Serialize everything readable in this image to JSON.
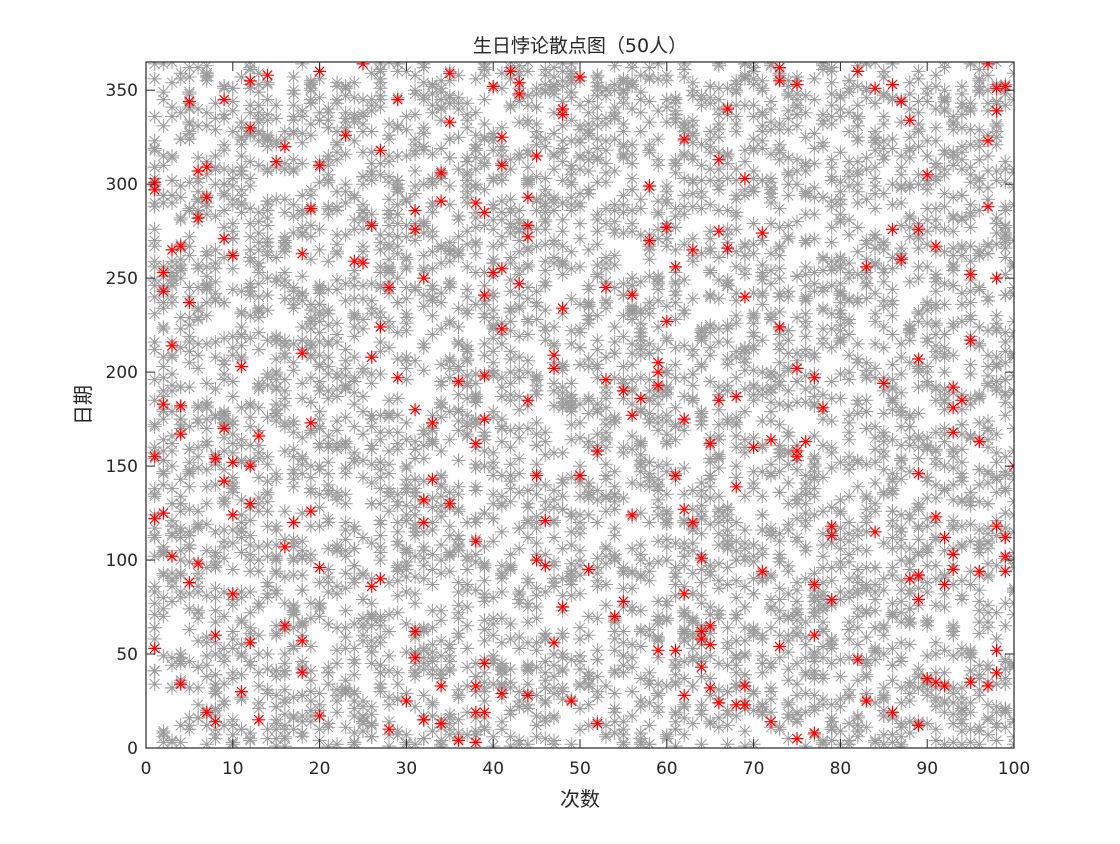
{
  "chart_data": {
    "type": "scatter",
    "title": "生日悖论散点图（50人）",
    "xlabel": "次数",
    "ylabel": "日期",
    "xlim": [
      0,
      100
    ],
    "ylim": [
      0,
      365
    ],
    "xticks": [
      0,
      10,
      20,
      30,
      40,
      50,
      60,
      70,
      80,
      90,
      100
    ],
    "yticks": [
      0,
      50,
      100,
      150,
      200,
      250,
      300,
      350
    ],
    "grid": false,
    "legend": "none",
    "marker": "asterisk",
    "colors": {
      "background_points": "#9b9b9b",
      "highlight_points": "#ff0000",
      "axes": "#262626"
    },
    "people_per_trial": 50,
    "trials": 100,
    "series": [
      {
        "role": "background",
        "color": "#9b9b9b",
        "description_source": "every simulated birthday for each trial (x = trial number, y = day of year)"
      },
      {
        "role": "highlight",
        "color": "#ff0000",
        "points": [
          [
            1,
            155
          ],
          [
            1,
            122
          ],
          [
            1,
            53
          ],
          [
            1,
            297
          ],
          [
            1,
            301
          ],
          [
            2,
            183
          ],
          [
            2,
            243
          ],
          [
            2,
            253
          ],
          [
            2,
            125
          ],
          [
            3,
            214
          ],
          [
            3,
            265
          ],
          [
            3,
            102
          ],
          [
            4,
            267
          ],
          [
            4,
            182
          ],
          [
            4,
            167
          ],
          [
            4,
            34
          ],
          [
            5,
            344
          ],
          [
            5,
            237
          ],
          [
            5,
            88
          ],
          [
            6,
            282
          ],
          [
            6,
            307
          ],
          [
            6,
            98
          ],
          [
            7,
            293
          ],
          [
            7,
            19
          ],
          [
            7,
            309
          ],
          [
            8,
            60
          ],
          [
            8,
            154
          ],
          [
            8,
            14
          ],
          [
            9,
            271
          ],
          [
            9,
            170
          ],
          [
            9,
            142
          ],
          [
            9,
            345
          ],
          [
            10,
            152
          ],
          [
            10,
            262
          ],
          [
            10,
            124
          ],
          [
            10,
            82
          ],
          [
            11,
            203
          ],
          [
            11,
            30
          ],
          [
            12,
            56
          ],
          [
            12,
            150
          ],
          [
            12,
            355
          ],
          [
            12,
            330
          ],
          [
            12,
            130
          ],
          [
            13,
            166
          ],
          [
            13,
            15
          ],
          [
            14,
            358
          ],
          [
            15,
            312
          ],
          [
            16,
            107
          ],
          [
            16,
            65
          ],
          [
            16,
            320
          ],
          [
            17,
            120
          ],
          [
            18,
            263
          ],
          [
            18,
            210
          ],
          [
            18,
            57
          ],
          [
            18,
            40
          ],
          [
            19,
            287
          ],
          [
            19,
            126
          ],
          [
            19,
            173
          ],
          [
            20,
            360
          ],
          [
            20,
            310
          ],
          [
            20,
            96
          ],
          [
            20,
            17
          ],
          [
            23,
            326
          ],
          [
            24,
            259
          ],
          [
            25,
            258
          ],
          [
            25,
            364
          ],
          [
            26,
            208
          ],
          [
            26,
            86
          ],
          [
            26,
            278
          ],
          [
            27,
            90
          ],
          [
            27,
            318
          ],
          [
            27,
            224
          ],
          [
            28,
            245
          ],
          [
            28,
            10
          ],
          [
            29,
            345
          ],
          [
            29,
            197
          ],
          [
            30,
            25
          ],
          [
            31,
            286
          ],
          [
            31,
            180
          ],
          [
            31,
            62
          ],
          [
            31,
            276
          ],
          [
            31,
            48
          ],
          [
            32,
            250
          ],
          [
            32,
            132
          ],
          [
            32,
            120
          ],
          [
            32,
            15
          ],
          [
            33,
            173
          ],
          [
            33,
            143
          ],
          [
            34,
            306
          ],
          [
            34,
            291
          ],
          [
            34,
            33
          ],
          [
            34,
            13
          ],
          [
            35,
            359
          ],
          [
            35,
            333
          ],
          [
            35,
            130
          ],
          [
            36,
            195
          ],
          [
            36,
            4
          ],
          [
            38,
            290
          ],
          [
            38,
            162
          ],
          [
            38,
            110
          ],
          [
            38,
            33
          ],
          [
            38,
            19
          ],
          [
            38,
            3
          ],
          [
            39,
            285
          ],
          [
            39,
            241
          ],
          [
            39,
            198
          ],
          [
            39,
            175
          ],
          [
            39,
            45
          ],
          [
            39,
            19
          ],
          [
            40,
            352
          ],
          [
            40,
            253
          ],
          [
            41,
            325
          ],
          [
            41,
            310
          ],
          [
            41,
            255
          ],
          [
            41,
            223
          ],
          [
            41,
            29
          ],
          [
            42,
            360
          ],
          [
            43,
            247
          ],
          [
            43,
            354
          ],
          [
            43,
            348
          ],
          [
            44,
            293
          ],
          [
            44,
            278
          ],
          [
            44,
            272
          ],
          [
            44,
            185
          ],
          [
            44,
            28
          ],
          [
            45,
            315
          ],
          [
            45,
            145
          ],
          [
            45,
            100
          ],
          [
            46,
            121
          ],
          [
            46,
            97
          ],
          [
            47,
            209
          ],
          [
            47,
            202
          ],
          [
            47,
            56
          ],
          [
            48,
            340
          ],
          [
            48,
            337
          ],
          [
            48,
            234
          ],
          [
            48,
            75
          ],
          [
            49,
            25
          ],
          [
            50,
            357
          ],
          [
            50,
            145
          ],
          [
            51,
            95
          ],
          [
            52,
            158
          ],
          [
            52,
            13
          ],
          [
            53,
            245
          ],
          [
            53,
            196
          ],
          [
            54,
            70
          ],
          [
            55,
            190
          ],
          [
            55,
            78
          ],
          [
            56,
            241
          ],
          [
            56,
            177
          ],
          [
            56,
            124
          ],
          [
            57,
            186
          ],
          [
            58,
            299
          ],
          [
            58,
            270
          ],
          [
            59,
            205
          ],
          [
            59,
            193
          ],
          [
            59,
            200
          ],
          [
            59,
            52
          ],
          [
            60,
            277
          ],
          [
            60,
            227
          ],
          [
            61,
            256
          ],
          [
            61,
            145
          ],
          [
            61,
            52
          ],
          [
            62,
            324
          ],
          [
            62,
            175
          ],
          [
            62,
            127
          ],
          [
            62,
            82
          ],
          [
            62,
            28
          ],
          [
            63,
            265
          ],
          [
            63,
            120
          ],
          [
            64,
            101
          ],
          [
            64,
            62
          ],
          [
            64,
            58
          ],
          [
            64,
            43
          ],
          [
            65,
            162
          ],
          [
            65,
            65
          ],
          [
            65,
            55
          ],
          [
            65,
            32
          ],
          [
            66,
            313
          ],
          [
            66,
            275
          ],
          [
            66,
            185
          ],
          [
            66,
            24
          ],
          [
            67,
            340
          ],
          [
            67,
            266
          ],
          [
            68,
            187
          ],
          [
            68,
            139
          ],
          [
            68,
            23
          ],
          [
            69,
            303
          ],
          [
            69,
            240
          ],
          [
            69,
            33
          ],
          [
            69,
            23
          ],
          [
            70,
            160
          ],
          [
            71,
            274
          ],
          [
            71,
            94
          ],
          [
            72,
            164
          ],
          [
            72,
            14
          ],
          [
            73,
            362
          ],
          [
            73,
            355
          ],
          [
            73,
            224
          ],
          [
            73,
            54
          ],
          [
            75,
            353
          ],
          [
            75,
            202
          ],
          [
            75,
            158
          ],
          [
            75,
            155
          ],
          [
            75,
            5
          ],
          [
            76,
            163
          ],
          [
            77,
            197
          ],
          [
            77,
            87
          ],
          [
            77,
            60
          ],
          [
            77,
            8
          ],
          [
            78,
            181
          ],
          [
            79,
            118
          ],
          [
            79,
            113
          ],
          [
            79,
            79
          ],
          [
            82,
            360
          ],
          [
            82,
            47
          ],
          [
            83,
            256
          ],
          [
            83,
            25
          ],
          [
            84,
            351
          ],
          [
            84,
            115
          ],
          [
            85,
            194
          ],
          [
            86,
            353
          ],
          [
            86,
            276
          ],
          [
            86,
            19
          ],
          [
            87,
            260
          ],
          [
            87,
            344
          ],
          [
            88,
            334
          ],
          [
            88,
            90
          ],
          [
            89,
            276
          ],
          [
            89,
            207
          ],
          [
            89,
            146
          ],
          [
            89,
            92
          ],
          [
            89,
            79
          ],
          [
            89,
            12
          ],
          [
            90,
            305
          ],
          [
            90,
            37
          ],
          [
            91,
            267
          ],
          [
            91,
            123
          ],
          [
            91,
            35
          ],
          [
            92,
            112
          ],
          [
            92,
            87
          ],
          [
            92,
            33
          ],
          [
            93,
            192
          ],
          [
            93,
            181
          ],
          [
            93,
            168
          ],
          [
            93,
            103
          ],
          [
            93,
            95
          ],
          [
            94,
            185
          ],
          [
            95,
            252
          ],
          [
            95,
            217
          ],
          [
            95,
            35
          ],
          [
            96,
            163
          ],
          [
            96,
            94
          ],
          [
            97,
            364
          ],
          [
            97,
            323
          ],
          [
            97,
            288
          ],
          [
            97,
            33
          ],
          [
            98,
            351
          ],
          [
            98,
            339
          ],
          [
            98,
            250
          ],
          [
            98,
            118
          ],
          [
            98,
            52
          ],
          [
            98,
            40
          ],
          [
            99,
            352
          ],
          [
            99,
            112
          ],
          [
            99,
            102
          ],
          [
            99,
            94
          ],
          [
            100,
            150
          ]
        ]
      }
    ]
  }
}
